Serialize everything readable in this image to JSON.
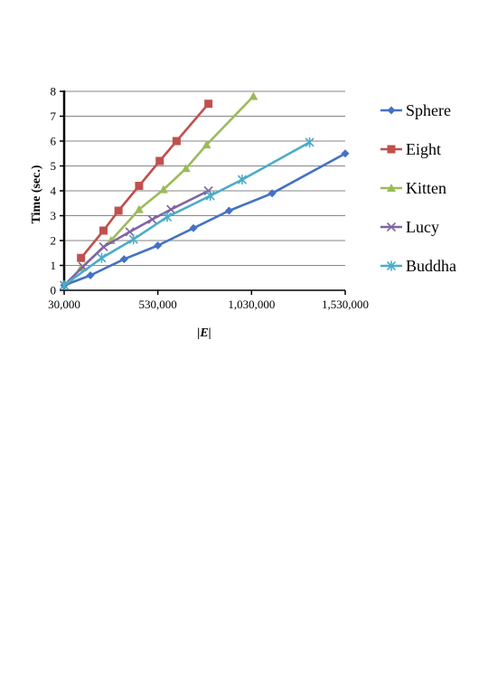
{
  "chart_data": {
    "type": "line",
    "title": "",
    "xlabel": "|E|",
    "ylabel": "Time (sec.)",
    "xlim": [
      30000,
      1530000
    ],
    "ylim": [
      0,
      8
    ],
    "x_ticks": [
      "30,000",
      "530,000",
      "1,030,000",
      "1,530,000"
    ],
    "x_tick_values": [
      30000,
      530000,
      1030000,
      1530000
    ],
    "y_ticks": [
      "0",
      "1",
      "2",
      "3",
      "4",
      "5",
      "6",
      "7",
      "8"
    ],
    "y_tick_values": [
      0,
      1,
      2,
      3,
      4,
      5,
      6,
      7,
      8
    ],
    "grid": "horizontal",
    "legend_position": "right",
    "series": [
      {
        "name": "Sphere",
        "color": "#4472C4",
        "marker": "diamond",
        "points": [
          [
            30000,
            0.2
          ],
          [
            170000,
            0.6
          ],
          [
            350000,
            1.25
          ],
          [
            530000,
            1.8
          ],
          [
            720000,
            2.5
          ],
          [
            910000,
            3.2
          ],
          [
            1140000,
            3.9
          ],
          [
            1530000,
            5.5
          ]
        ]
      },
      {
        "name": "Eight",
        "color": "#C0504D",
        "marker": "square",
        "points": [
          [
            120000,
            1.3
          ],
          [
            240000,
            2.4
          ],
          [
            320000,
            3.2
          ],
          [
            430000,
            4.2
          ],
          [
            540000,
            5.2
          ],
          [
            630000,
            6.0
          ],
          [
            800000,
            7.5
          ]
        ]
      },
      {
        "name": "Kitten",
        "color": "#9BBB59",
        "marker": "triangle",
        "points": [
          [
            120000,
            0.9
          ],
          [
            280000,
            2.0
          ],
          [
            430000,
            3.25
          ],
          [
            560000,
            4.05
          ],
          [
            680000,
            4.9
          ],
          [
            790000,
            5.85
          ],
          [
            1040000,
            7.8
          ]
        ]
      },
      {
        "name": "Lucy",
        "color": "#8064A2",
        "marker": "x",
        "points": [
          [
            30000,
            0.2
          ],
          [
            130000,
            0.95
          ],
          [
            240000,
            1.75
          ],
          [
            380000,
            2.35
          ],
          [
            500000,
            2.85
          ],
          [
            600000,
            3.25
          ],
          [
            800000,
            4.0
          ]
        ]
      },
      {
        "name": "Buddha",
        "color": "#4BACC6",
        "marker": "asterisk",
        "points": [
          [
            30000,
            0.2
          ],
          [
            230000,
            1.3
          ],
          [
            400000,
            2.05
          ],
          [
            580000,
            2.95
          ],
          [
            810000,
            3.8
          ],
          [
            980000,
            4.45
          ],
          [
            1340000,
            5.95
          ]
        ]
      }
    ]
  }
}
